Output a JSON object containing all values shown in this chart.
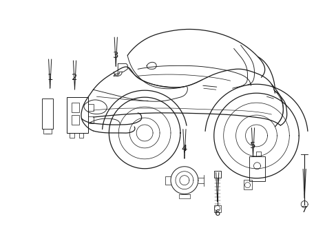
{
  "background_color": "#ffffff",
  "line_color": "#1a1a1a",
  "fig_width": 4.89,
  "fig_height": 3.6,
  "dpi": 100,
  "lw_main": 0.9,
  "lw_thin": 0.65,
  "label_fontsize": 9.5
}
